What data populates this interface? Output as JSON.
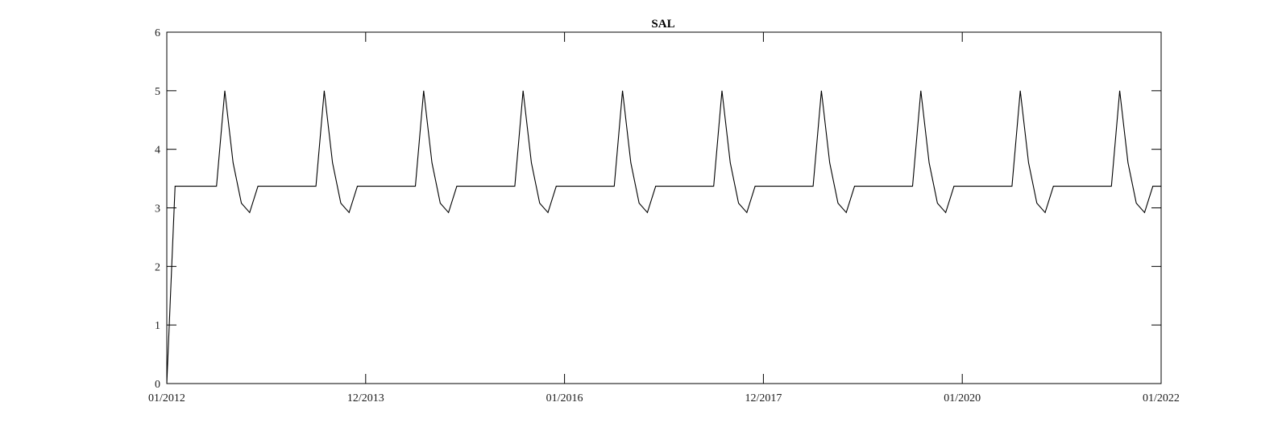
{
  "chart_data": {
    "type": "line",
    "title": "SAL",
    "xlabel": "",
    "ylabel": "",
    "x_tick_labels": [
      "01/2012",
      "12/2013",
      "01/2016",
      "12/2017",
      "01/2020",
      "01/2022"
    ],
    "y_ticks": [
      0,
      1,
      2,
      3,
      4,
      5,
      6
    ],
    "ylim": [
      0,
      6
    ],
    "grid": false,
    "line_color": "#000000",
    "series": [
      {
        "x_months": [
          0,
          1,
          2,
          3,
          4,
          5,
          6,
          7,
          8,
          9,
          10,
          11,
          12,
          13,
          14,
          15,
          16,
          17,
          18,
          19,
          20,
          21,
          22,
          23,
          24,
          25,
          26,
          27,
          28,
          29,
          30,
          31,
          32,
          33,
          34,
          35,
          36,
          37,
          38,
          39,
          40,
          41,
          42,
          43,
          44,
          45,
          46,
          47,
          48,
          49,
          50,
          51,
          52,
          53,
          54,
          55,
          56,
          57,
          58,
          59,
          60,
          61,
          62,
          63,
          64,
          65,
          66,
          67,
          68,
          69,
          70,
          71,
          72,
          73,
          74,
          75,
          76,
          77,
          78,
          79,
          80,
          81,
          82,
          83,
          84,
          85,
          86,
          87,
          88,
          89,
          90,
          91,
          92,
          93,
          94,
          95,
          96,
          97,
          98,
          99,
          100,
          101,
          102,
          103,
          104,
          105,
          106,
          107,
          108,
          109,
          110,
          111,
          112,
          113,
          114,
          115,
          116,
          117,
          118,
          119,
          120
        ],
        "values": [
          0,
          3.37,
          3.37,
          3.37,
          3.37,
          3.37,
          3.37,
          5.0,
          3.77,
          3.08,
          2.92,
          3.37,
          3.37,
          3.37,
          3.37,
          3.37,
          3.37,
          3.37,
          3.37,
          5.0,
          3.77,
          3.08,
          2.92,
          3.37,
          3.37,
          3.37,
          3.37,
          3.37,
          3.37,
          3.37,
          3.37,
          5.0,
          3.77,
          3.08,
          2.92,
          3.37,
          3.37,
          3.37,
          3.37,
          3.37,
          3.37,
          3.37,
          3.37,
          5.0,
          3.77,
          3.08,
          2.92,
          3.37,
          3.37,
          3.37,
          3.37,
          3.37,
          3.37,
          3.37,
          3.37,
          5.0,
          3.77,
          3.08,
          2.92,
          3.37,
          3.37,
          3.37,
          3.37,
          3.37,
          3.37,
          3.37,
          3.37,
          5.0,
          3.77,
          3.08,
          2.92,
          3.37,
          3.37,
          3.37,
          3.37,
          3.37,
          3.37,
          3.37,
          3.37,
          5.0,
          3.77,
          3.08,
          2.92,
          3.37,
          3.37,
          3.37,
          3.37,
          3.37,
          3.37,
          3.37,
          3.37,
          5.0,
          3.77,
          3.08,
          2.92,
          3.37,
          3.37,
          3.37,
          3.37,
          3.37,
          3.37,
          3.37,
          3.37,
          5.0,
          3.77,
          3.08,
          2.92,
          3.37,
          3.37,
          3.37,
          3.37,
          3.37,
          3.37,
          3.37,
          3.37,
          5.0,
          3.77,
          3.08,
          2.92,
          3.37,
          3.37
        ]
      }
    ]
  }
}
